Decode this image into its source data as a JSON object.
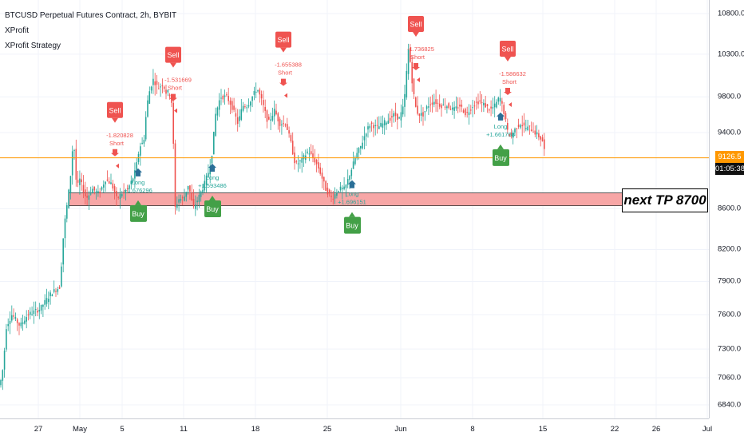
{
  "legend": {
    "symbol": "BTCUSD Perpetual Futures Contract, 2h, BYBIT",
    "indicator_1": "XProfit",
    "indicator_2": "XProfit Strategy"
  },
  "price_axis": {
    "ticks": [
      "10800.0",
      "10300.0",
      "9800.0",
      "9400.0",
      "8600.0",
      "8200.0",
      "7900.0",
      "7600.0",
      "7300.0",
      "7060.0",
      "6840.0"
    ],
    "tick_values": [
      10800,
      10300,
      9800,
      9400,
      8600,
      8200,
      7900,
      7600,
      7300,
      7060,
      6840
    ],
    "last_price": "9126.5",
    "countdown": "01:05:38"
  },
  "time_axis": {
    "ticks": [
      "27",
      "May",
      "5",
      "11",
      "18",
      "25",
      "Jun",
      "8",
      "15",
      "22",
      "26",
      "Jul"
    ]
  },
  "annotation": {
    "text": "next TP 8700",
    "zone_price": 8700
  },
  "colors": {
    "up": "#26a69a",
    "down": "#ef5350",
    "sell": "#ef5350",
    "buy": "#43a047",
    "zone_fill": "#f7a6a6",
    "last_price": "#ff9800"
  },
  "chart_data": {
    "type": "candlestick",
    "title": "BTCUSD Perpetual Futures Contract, 2h, BYBIT",
    "y_scale": "log",
    "path": [
      [
        0,
        7000
      ],
      [
        4,
        7150
      ],
      [
        8,
        7500
      ],
      [
        15,
        7600
      ],
      [
        25,
        7500
      ],
      [
        35,
        7600
      ],
      [
        50,
        7650
      ],
      [
        65,
        7800
      ],
      [
        75,
        7850
      ],
      [
        80,
        8400
      ],
      [
        85,
        8700
      ],
      [
        88,
        8900
      ],
      [
        92,
        9350
      ],
      [
        96,
        8800
      ],
      [
        100,
        8900
      ],
      [
        108,
        8700
      ],
      [
        116,
        8800
      ],
      [
        124,
        8750
      ],
      [
        132,
        8900
      ],
      [
        140,
        8850
      ],
      [
        146,
        8700
      ],
      [
        152,
        8750
      ],
      [
        160,
        8800
      ],
      [
        166,
        8900
      ],
      [
        170,
        9000
      ],
      [
        175,
        9250
      ],
      [
        180,
        9300
      ],
      [
        184,
        9700
      ],
      [
        188,
        9900
      ],
      [
        192,
        10000
      ],
      [
        198,
        9900
      ],
      [
        204,
        9950
      ],
      [
        208,
        9850
      ],
      [
        212,
        9850
      ],
      [
        216,
        9700
      ],
      [
        219,
        8600
      ],
      [
        224,
        8700
      ],
      [
        230,
        8700
      ],
      [
        236,
        8850
      ],
      [
        242,
        8600
      ],
      [
        248,
        8700
      ],
      [
        256,
        8850
      ],
      [
        262,
        9000
      ],
      [
        266,
        9200
      ],
      [
        270,
        9600
      ],
      [
        276,
        9800
      ],
      [
        284,
        9800
      ],
      [
        290,
        9700
      ],
      [
        298,
        9500
      ],
      [
        304,
        9700
      ],
      [
        310,
        9700
      ],
      [
        316,
        9800
      ],
      [
        322,
        9900
      ],
      [
        328,
        9750
      ],
      [
        336,
        9500
      ],
      [
        344,
        9650
      ],
      [
        350,
        9500
      ],
      [
        358,
        9500
      ],
      [
        364,
        9300
      ],
      [
        370,
        9050
      ],
      [
        378,
        9100
      ],
      [
        386,
        9200
      ],
      [
        394,
        9100
      ],
      [
        400,
        9000
      ],
      [
        408,
        8800
      ],
      [
        416,
        8700
      ],
      [
        424,
        8800
      ],
      [
        432,
        8800
      ],
      [
        440,
        9000
      ],
      [
        446,
        9150
      ],
      [
        452,
        9250
      ],
      [
        458,
        9400
      ],
      [
        464,
        9500
      ],
      [
        472,
        9450
      ],
      [
        480,
        9500
      ],
      [
        488,
        9550
      ],
      [
        494,
        9600
      ],
      [
        500,
        9550
      ],
      [
        506,
        9700
      ],
      [
        512,
        10400
      ],
      [
        516,
        10000
      ],
      [
        520,
        9700
      ],
      [
        524,
        9600
      ],
      [
        530,
        9600
      ],
      [
        536,
        9700
      ],
      [
        544,
        9750
      ],
      [
        552,
        9700
      ],
      [
        560,
        9700
      ],
      [
        568,
        9650
      ],
      [
        576,
        9700
      ],
      [
        584,
        9600
      ],
      [
        592,
        9700
      ],
      [
        600,
        9750
      ],
      [
        608,
        9700
      ],
      [
        614,
        9650
      ],
      [
        620,
        9700
      ],
      [
        626,
        9800
      ],
      [
        632,
        9600
      ],
      [
        636,
        9400
      ],
      [
        640,
        9350
      ],
      [
        646,
        9450
      ],
      [
        652,
        9500
      ],
      [
        658,
        9450
      ],
      [
        664,
        9450
      ],
      [
        670,
        9400
      ],
      [
        676,
        9350
      ],
      [
        680,
        9300
      ],
      [
        684,
        9100
      ]
    ],
    "support_zone": [
      8630,
      8760
    ],
    "signals": [
      {
        "type": "Sell",
        "label": "Short",
        "value": "-1.820828",
        "x": 144
      },
      {
        "type": "Buy",
        "label": "Long",
        "value": "+1.676296",
        "x": 173
      },
      {
        "type": "Sell",
        "label": "Short",
        "value": "-1.531669",
        "x": 217
      },
      {
        "type": "Buy",
        "label": "Long",
        "value": "+1.593486",
        "x": 266
      },
      {
        "type": "Sell",
        "label": "Short",
        "value": "-1.655388",
        "x": 355
      },
      {
        "type": "Buy",
        "label": "Long",
        "value": "+1.696151",
        "x": 441
      },
      {
        "type": "Sell",
        "label": "Short",
        "value": "-1.736825",
        "x": 521
      },
      {
        "type": "Buy",
        "label": "Long",
        "value": "+1.661768",
        "x": 627
      },
      {
        "type": "Sell",
        "label": "Short",
        "value": "-1.586632",
        "x": 636
      }
    ]
  }
}
